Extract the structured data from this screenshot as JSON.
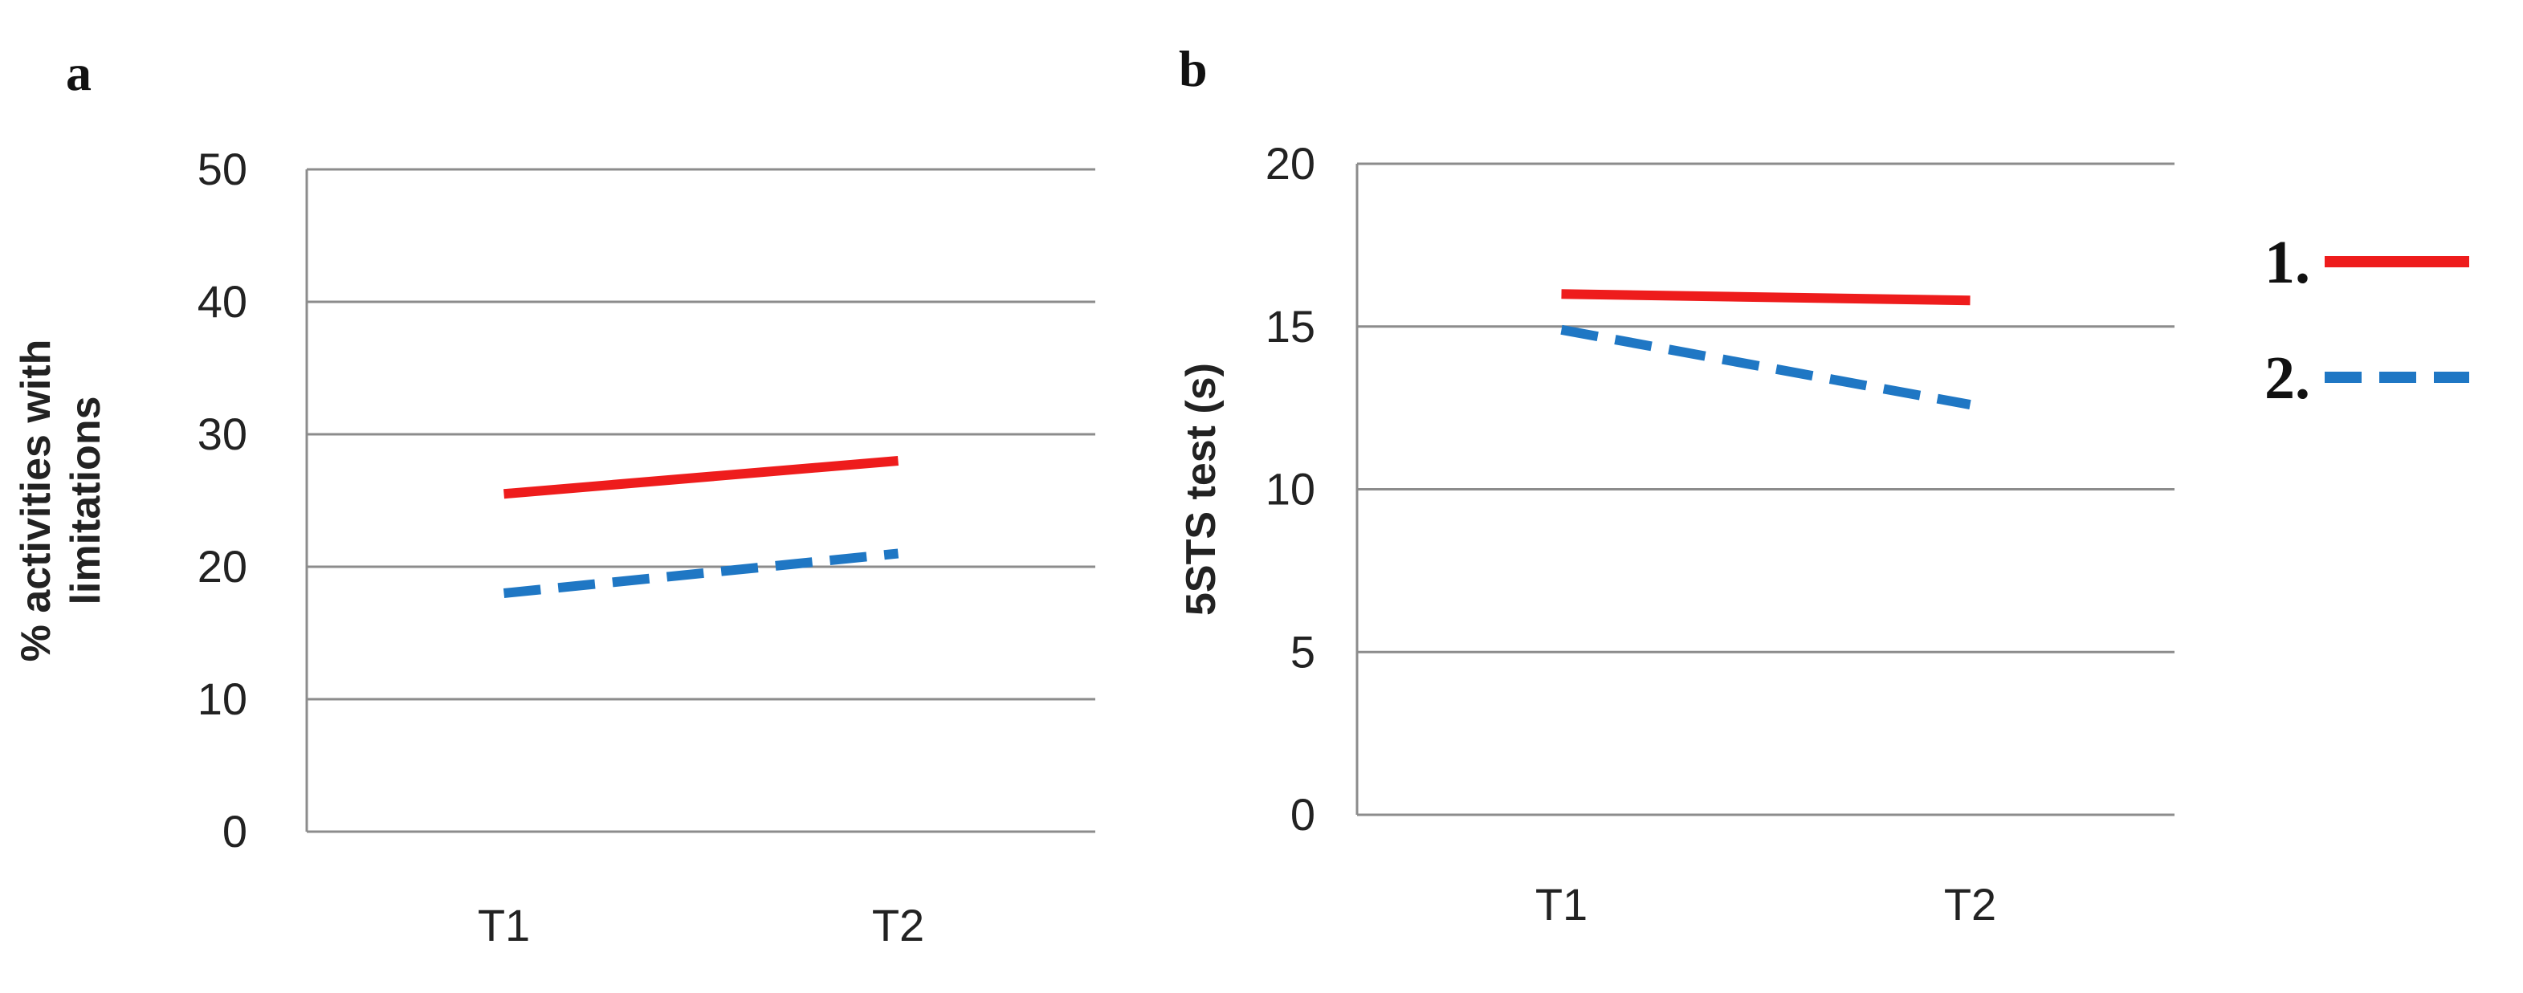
{
  "chart_data": [
    {
      "type": "line",
      "panel": "a",
      "ylabel_lines": [
        "% activities with",
        "limitations"
      ],
      "categories": [
        "T1",
        "T2"
      ],
      "ylim": [
        0,
        50
      ],
      "yticks": [
        0,
        10,
        20,
        30,
        40,
        50
      ],
      "grid": true,
      "series": [
        {
          "name": "1.",
          "values": [
            25.5,
            28
          ],
          "color": "#ee1c1c",
          "dash": "solid"
        },
        {
          "name": "2.",
          "values": [
            18,
            21
          ],
          "color": "#1f77c4",
          "dash": "dashed"
        }
      ]
    },
    {
      "type": "line",
      "panel": "b",
      "ylabel_lines": [
        "5STS test (s)"
      ],
      "categories": [
        "T1",
        "T2"
      ],
      "ylim": [
        0,
        20
      ],
      "yticks": [
        0,
        5,
        10,
        15,
        20
      ],
      "grid": true,
      "series": [
        {
          "name": "1.",
          "values": [
            16,
            15.8
          ],
          "color": "#ee1c1c",
          "dash": "solid"
        },
        {
          "name": "2.",
          "values": [
            14.9,
            12.6
          ],
          "color": "#1f77c4",
          "dash": "dashed"
        }
      ]
    }
  ],
  "legend": {
    "placement": "right",
    "items": [
      {
        "label": "1.",
        "color": "#ee1c1c",
        "dash": "solid"
      },
      {
        "label": "2.",
        "color": "#1f77c4",
        "dash": "dashed"
      }
    ]
  }
}
